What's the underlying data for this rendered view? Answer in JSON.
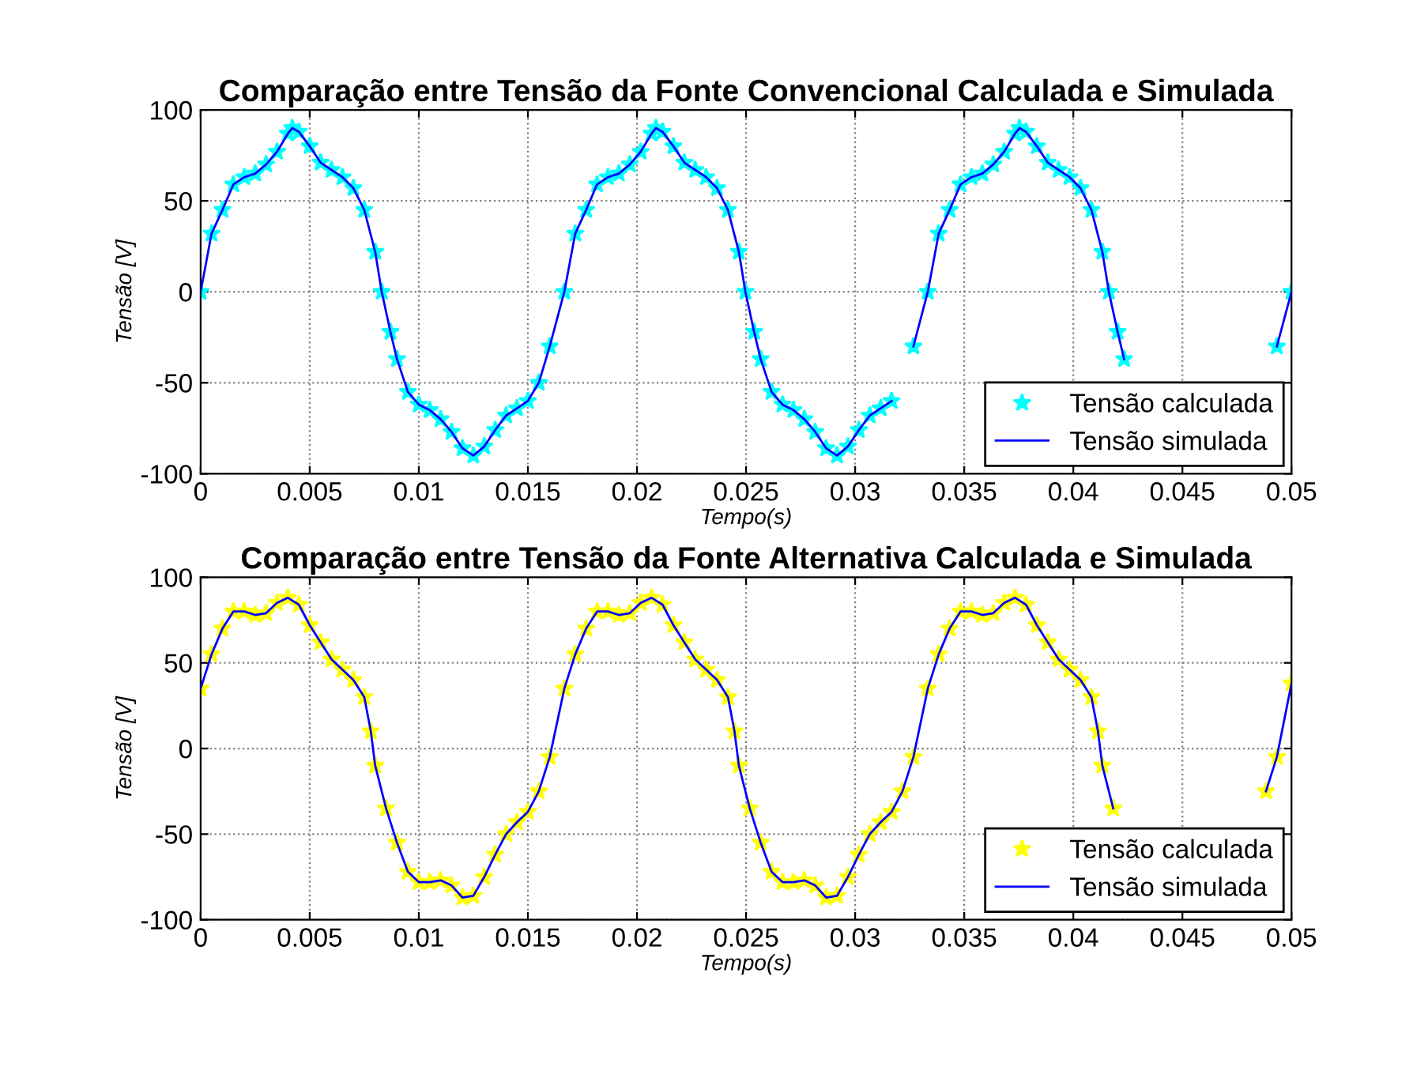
{
  "chart_data": [
    {
      "type": "line",
      "title": "Comparação entre Tensão da Fonte Convencional Calculada e Simulada",
      "xlabel": "Tempo(s)",
      "ylabel": "Tensão [V]",
      "x": [
        0,
        0.0005,
        0.001,
        0.0015,
        0.002,
        0.0025,
        0.003,
        0.0035,
        0.004,
        0.0042,
        0.0045,
        0.005,
        0.0055,
        0.006,
        0.0065,
        0.007,
        0.0075,
        0.008,
        0.0083,
        0.0087,
        0.009,
        0.0095,
        0.01,
        0.0105,
        0.011,
        0.0115,
        0.012,
        0.0125,
        0.013,
        0.0135,
        0.014,
        0.0145,
        0.015,
        0.0155,
        0.016,
        0.01667,
        0.01717,
        0.01767,
        0.01817,
        0.01867,
        0.01917,
        0.01967,
        0.02017,
        0.02067,
        0.02087,
        0.02117,
        0.02167,
        0.02217,
        0.02267,
        0.02317,
        0.02367,
        0.02417,
        0.02467,
        0.02497,
        0.02537,
        0.02567,
        0.02617,
        0.02667,
        0.02717,
        0.02767,
        0.02817,
        0.02867,
        0.02917,
        0.02967,
        0.03017,
        0.03067,
        0.03117,
        0.03167,
        0.03217,
        0.03267,
        0.03333,
        0.03383,
        0.03433,
        0.03483,
        0.03533,
        0.03583,
        0.03633,
        0.03683,
        0.03733,
        0.03753,
        0.03783,
        0.03833,
        0.03883,
        0.03933,
        0.03983,
        0.04033,
        0.04083,
        0.04133,
        0.04163,
        0.04203,
        0.04233,
        0.04283,
        0.04333,
        0.04383,
        0.04433,
        0.04483,
        0.04533,
        0.04583,
        0.04633,
        0.04683,
        0.04733,
        0.04783,
        0.04833,
        0.04883,
        0.04933,
        0.05
      ],
      "series": [
        {
          "name": "Tensão calculada",
          "type": "scatter",
          "marker": "star",
          "color": "#00ffff",
          "values": [
            0,
            32,
            45,
            59,
            63,
            65,
            70,
            77,
            87,
            90,
            88,
            80,
            71,
            67,
            63,
            57,
            45,
            22,
            0,
            -22,
            -37,
            -55,
            -62,
            -65,
            -70,
            -77,
            -86,
            -90,
            -85,
            -76,
            -68,
            -64,
            -60,
            -50,
            -30,
            0,
            32,
            45,
            59,
            63,
            65,
            70,
            77,
            87,
            90,
            88,
            80,
            71,
            67,
            63,
            57,
            45,
            22,
            0,
            -22,
            -37,
            -55,
            -62,
            -65,
            -70,
            -77,
            -86,
            -90,
            -85,
            -76,
            -68,
            -64,
            -60,
            null,
            -30,
            0,
            32,
            45,
            59,
            63,
            65,
            70,
            77,
            87,
            90,
            88,
            80,
            71,
            67,
            63,
            57,
            45,
            22,
            0,
            -22,
            -37,
            null,
            null,
            null,
            null,
            null,
            null,
            null,
            null,
            null,
            null,
            null,
            null,
            null,
            -30,
            0
          ]
        },
        {
          "name": "Tensão simulada",
          "type": "line",
          "color": "#0000ff",
          "values": [
            0,
            32,
            45,
            59,
            63,
            65,
            70,
            77,
            87,
            90,
            88,
            80,
            71,
            67,
            63,
            57,
            45,
            22,
            0,
            -22,
            -37,
            -55,
            -62,
            -65,
            -70,
            -77,
            -86,
            -90,
            -85,
            -76,
            -68,
            -64,
            -60,
            -50,
            -30,
            0,
            32,
            45,
            59,
            63,
            65,
            70,
            77,
            87,
            90,
            88,
            80,
            71,
            67,
            63,
            57,
            45,
            22,
            0,
            -22,
            -37,
            -55,
            -62,
            -65,
            -70,
            -77,
            -86,
            -90,
            -85,
            -76,
            -68,
            -64,
            -60,
            null,
            -30,
            0,
            32,
            45,
            59,
            63,
            65,
            70,
            77,
            87,
            90,
            88,
            80,
            71,
            67,
            63,
            57,
            45,
            22,
            0,
            -22,
            -37,
            null,
            null,
            null,
            null,
            null,
            null,
            null,
            null,
            null,
            null,
            null,
            null,
            null,
            -30,
            0
          ]
        }
      ],
      "xlim": [
        0,
        0.05
      ],
      "xticks": [
        0,
        0.005,
        0.01,
        0.015,
        0.02,
        0.025,
        0.03,
        0.035,
        0.04,
        0.045,
        0.05
      ],
      "ylim": [
        -100,
        100
      ],
      "yticks": [
        -100,
        -50,
        0,
        50,
        100
      ],
      "grid": true,
      "legend": "bottom right"
    },
    {
      "type": "line",
      "title": "Comparação entre Tensão da Fonte Alternativa Calculada e Simulada",
      "xlabel": "Tempo(s)",
      "ylabel": "Tensão [V]",
      "x": [
        0,
        0.0005,
        0.001,
        0.0015,
        0.002,
        0.0025,
        0.003,
        0.0035,
        0.004,
        0.0045,
        0.005,
        0.0055,
        0.006,
        0.0065,
        0.007,
        0.0075,
        0.0078,
        0.008,
        0.0085,
        0.009,
        0.0095,
        0.01,
        0.0105,
        0.011,
        0.0115,
        0.012,
        0.0125,
        0.013,
        0.0135,
        0.014,
        0.0145,
        0.015,
        0.0155,
        0.016,
        0.01667,
        0.01717,
        0.01767,
        0.01817,
        0.01867,
        0.01917,
        0.01967,
        0.02017,
        0.02067,
        0.02117,
        0.02167,
        0.02217,
        0.02267,
        0.02317,
        0.02367,
        0.02417,
        0.02447,
        0.02467,
        0.02517,
        0.02567,
        0.02617,
        0.02667,
        0.02717,
        0.02767,
        0.02817,
        0.02867,
        0.02917,
        0.02967,
        0.03017,
        0.03067,
        0.03117,
        0.03167,
        0.03217,
        0.03267,
        0.03333,
        0.03383,
        0.03433,
        0.03483,
        0.03533,
        0.03583,
        0.03633,
        0.03683,
        0.03733,
        0.03783,
        0.03833,
        0.03883,
        0.03933,
        0.03983,
        0.04033,
        0.04083,
        0.04113,
        0.04133,
        0.04183,
        0.04233,
        0.04283,
        0.04333,
        0.04383,
        0.04433,
        0.04483,
        0.04533,
        0.04583,
        0.04633,
        0.04683,
        0.04733,
        0.04783,
        0.04833,
        0.04883,
        0.04933,
        0.05
      ],
      "series": [
        {
          "name": "Tensão calculada",
          "type": "scatter",
          "marker": "star",
          "color": "#ffff00",
          "values": [
            35,
            55,
            70,
            80,
            80,
            78,
            79,
            85,
            88,
            84,
            72,
            62,
            52,
            46,
            40,
            30,
            10,
            -10,
            -35,
            -55,
            -72,
            -78,
            -78,
            -77,
            -80,
            -87,
            -86,
            -75,
            -62,
            -50,
            -43,
            -37,
            -25,
            -5,
            35,
            55,
            70,
            80,
            80,
            78,
            79,
            85,
            88,
            84,
            72,
            62,
            52,
            46,
            40,
            30,
            10,
            -10,
            -35,
            -55,
            -72,
            -78,
            -78,
            -77,
            -80,
            -87,
            -86,
            -75,
            -62,
            -50,
            -43,
            -37,
            -25,
            -5,
            35,
            55,
            70,
            80,
            80,
            78,
            79,
            85,
            88,
            84,
            72,
            62,
            52,
            46,
            40,
            30,
            10,
            -10,
            -35,
            null,
            null,
            null,
            null,
            null,
            null,
            null,
            null,
            null,
            null,
            null,
            null,
            null,
            -25,
            -5,
            38
          ]
        },
        {
          "name": "Tensão simulada",
          "type": "line",
          "color": "#0000ff",
          "values": [
            35,
            55,
            70,
            80,
            80,
            78,
            79,
            85,
            88,
            84,
            72,
            62,
            52,
            46,
            40,
            30,
            10,
            -10,
            -35,
            -55,
            -72,
            -78,
            -78,
            -77,
            -80,
            -87,
            -86,
            -75,
            -62,
            -50,
            -43,
            -37,
            -25,
            -5,
            35,
            55,
            70,
            80,
            80,
            78,
            79,
            85,
            88,
            84,
            72,
            62,
            52,
            46,
            40,
            30,
            10,
            -10,
            -35,
            -55,
            -72,
            -78,
            -78,
            -77,
            -80,
            -87,
            -86,
            -75,
            -62,
            -50,
            -43,
            -37,
            -25,
            -5,
            35,
            55,
            70,
            80,
            80,
            78,
            79,
            85,
            88,
            84,
            72,
            62,
            52,
            46,
            40,
            30,
            10,
            -10,
            -35,
            null,
            null,
            null,
            null,
            null,
            null,
            null,
            null,
            null,
            null,
            null,
            null,
            null,
            -25,
            -5,
            38
          ]
        }
      ],
      "xlim": [
        0,
        0.05
      ],
      "xticks": [
        0,
        0.005,
        0.01,
        0.015,
        0.02,
        0.025,
        0.03,
        0.035,
        0.04,
        0.045,
        0.05
      ],
      "ylim": [
        -100,
        100
      ],
      "yticks": [
        -100,
        -50,
        0,
        50,
        100
      ],
      "grid": true,
      "legend": "bottom right"
    }
  ]
}
